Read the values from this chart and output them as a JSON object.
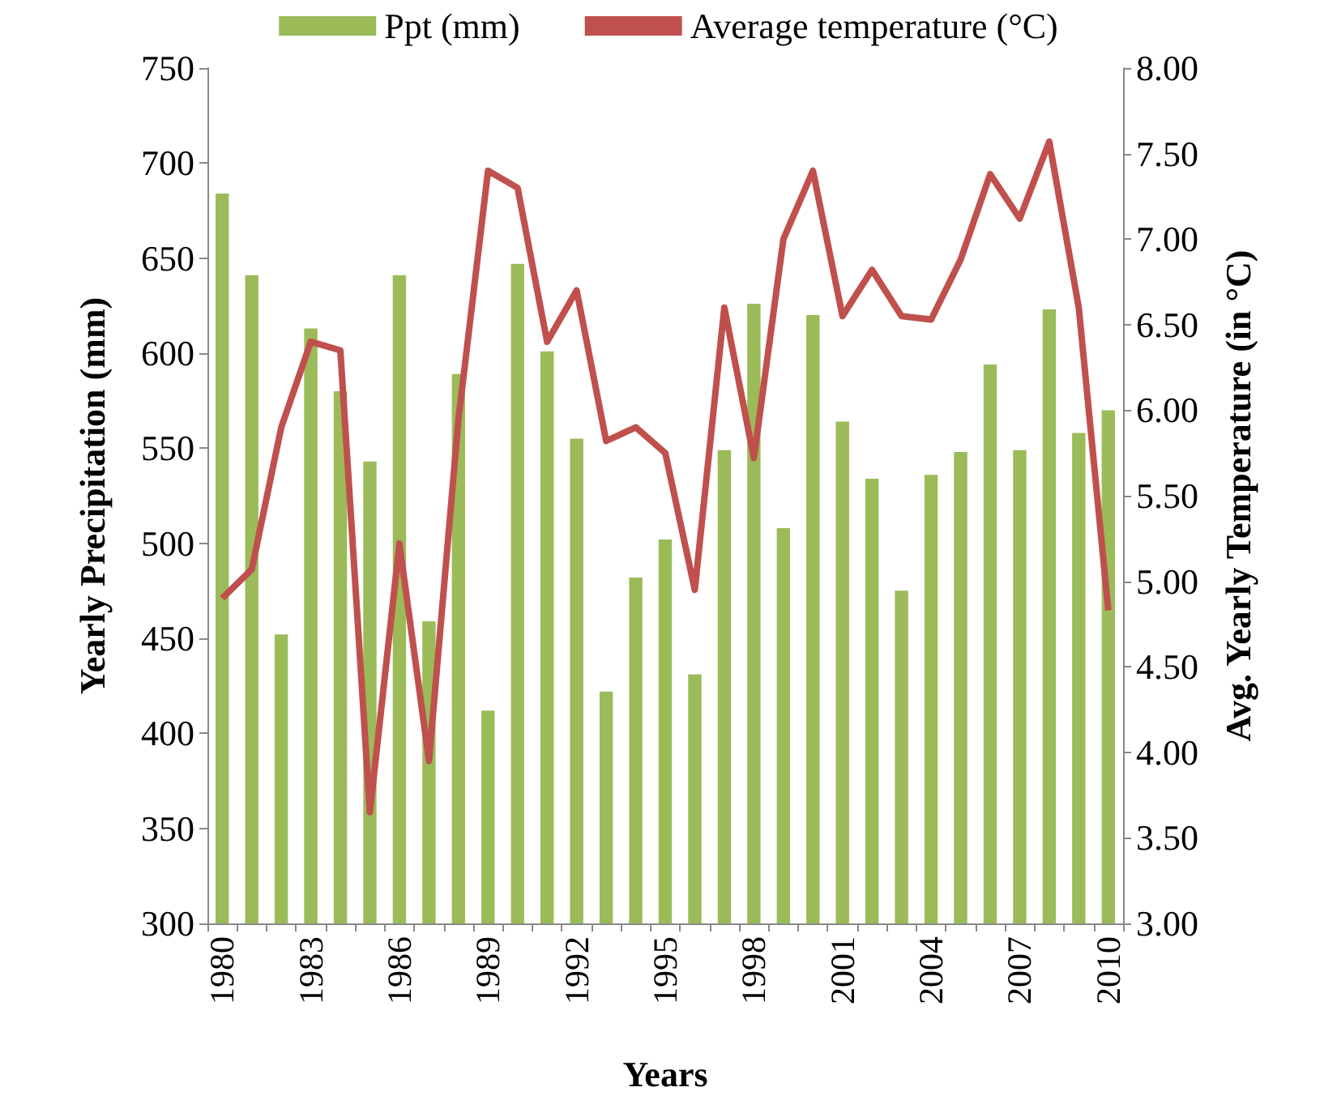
{
  "chart_data": {
    "type": "bar",
    "xlabel": "Years",
    "ylabel": "Yearly Precipitation (mm)",
    "y2label": "Avg. Yearly Temperature (in °C)",
    "categories": [
      "1980",
      null,
      null,
      "1983",
      null,
      null,
      "1986",
      null,
      null,
      "1989",
      null,
      null,
      "1992",
      null,
      null,
      "1995",
      null,
      null,
      "1998",
      null,
      null,
      "2001",
      null,
      null,
      "2004",
      null,
      null,
      "2007",
      null,
      null,
      "2010"
    ],
    "series": [
      {
        "name": "Ppt (mm)",
        "color": "#9bbb59",
        "values": [
          684,
          641,
          452,
          613,
          580,
          543,
          641,
          459,
          589,
          412,
          647,
          601,
          555,
          422,
          482,
          502,
          431,
          549,
          626,
          508,
          620,
          564,
          534,
          475,
          536,
          548,
          594,
          549,
          623,
          558,
          570
        ]
      },
      {
        "name": "Average temperature (°C)",
        "type": "line",
        "axis": "y2",
        "color": "#c0504d",
        "values": [
          4.9,
          5.07,
          5.9,
          6.4,
          6.35,
          3.65,
          5.22,
          3.95,
          5.95,
          7.4,
          7.3,
          6.4,
          6.7,
          5.82,
          5.9,
          5.75,
          4.95,
          6.6,
          5.72,
          7.0,
          7.4,
          6.55,
          6.82,
          6.55,
          6.53,
          6.88,
          7.38,
          7.12,
          7.57,
          6.6,
          4.83
        ]
      }
    ],
    "ylim": [
      300,
      750
    ],
    "yticks": [
      300,
      350,
      400,
      450,
      500,
      550,
      600,
      650,
      700,
      750
    ],
    "y2lim": [
      3,
      8
    ],
    "y2ticks": [
      {
        "value": 3,
        "label": "3.00"
      },
      {
        "value": 3.5,
        "label": "3.50"
      },
      {
        "value": 4,
        "label": "4.00"
      },
      {
        "value": 4.5,
        "label": "4.50"
      },
      {
        "value": 5,
        "label": "5.00"
      },
      {
        "value": 5.5,
        "label": "5.50"
      },
      {
        "value": 6,
        "label": "6.00"
      },
      {
        "value": 6.5,
        "label": "6.50"
      },
      {
        "value": 7,
        "label": "7.00"
      },
      {
        "value": 7.5,
        "label": "7.50"
      },
      {
        "value": 8,
        "label": "8.00"
      }
    ],
    "grid": false,
    "legend": "top",
    "marker": "none",
    "line_style": "solid"
  }
}
